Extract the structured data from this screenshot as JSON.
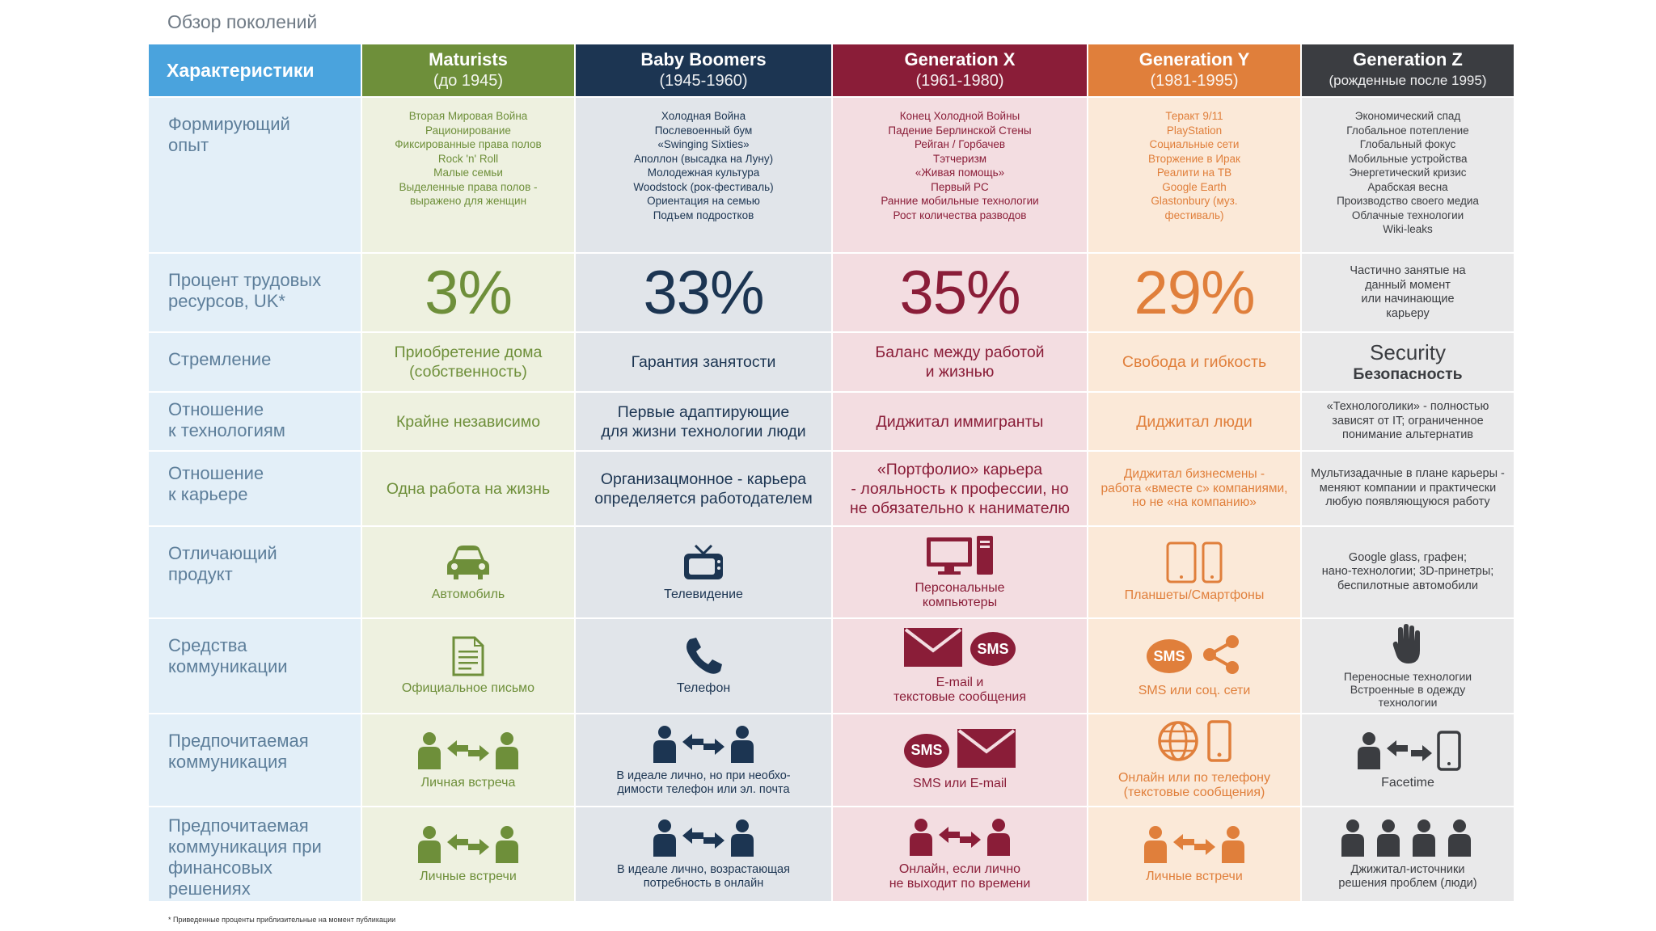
{
  "title": "Обзор поколений",
  "footnote": "* Приведенные проценты приблизительные на момент публикации",
  "header": {
    "label": "Характеристики",
    "generations": [
      {
        "name": "Maturists",
        "period": "(до 1945)"
      },
      {
        "name": "Baby Boomers",
        "period": "(1945-1960)"
      },
      {
        "name": "Generation X",
        "period": "(1961-1980)"
      },
      {
        "name": "Generation Y",
        "period": "(1981-1995)"
      },
      {
        "name": "Generation Z",
        "period": "(рожденные после 1995)"
      }
    ]
  },
  "rows": {
    "experience": {
      "label": "Формирующий\nопыт",
      "values": [
        "Вторая Мировая Война\nРационирование\nФиксированные права полов\nRock 'n' Roll\nМалые семьи\nВыделенные права полов -\nвыражено для женщин",
        "Холодная Война\nПослевоенный бум\n«Swinging Sixties»\nАполлон (высадка на Луну)\nМолодежная культура\nWoodstock (рок-фестиваль)\nОриентация на семью\nПодъем подростков",
        "Конец Холодной Войны\nПадение Берлинской Стены\nРейган / Горбачев\nТэтчеризм\n«Живая помощь»\nПервый PC\nРанние мобильные технологии\nРост количества разводов",
        "Теракт 9/11\nPlayStation\nСоциальные сети\nВторжение в Ирак\nРеалити на ТВ\nGoogle Earth\nGlastonbury (муз.\nфестиваль)",
        "Экономический спад\nГлобальное потепление\nГлобальный фокус\nМобильные устройства\nЭнергетический кризис\nАрабская весна\nПроизводство своего медиа\nОблачные технологии\nWiki-leaks"
      ]
    },
    "workforce": {
      "label": "Процент трудовых\nресурсов, UK*",
      "values": [
        "3%",
        "33%",
        "35%",
        "29%",
        "Частично занятые на\nданный момент\nили начинающие\nкарьеру"
      ]
    },
    "aspiration": {
      "label": "Стремление",
      "values": [
        "Приобретение дома\n(собственность)",
        "Гарантия занятости",
        "Баланс между работой\nи жизнью",
        "Свобода и гибкость"
      ],
      "genz_en": "Security",
      "genz_ru": "Безопасность"
    },
    "technology": {
      "label": "Отношение\nк технологиям",
      "values": [
        "Крайне независимо",
        "Первые адаптирующие\nдля жизни технологии люди",
        "Диджитал иммигранты",
        "Диджитал люди",
        "«Технологолики» - полностью\nзависят от IT; ограниченное\nпонимание альтернатив"
      ]
    },
    "career": {
      "label": "Отношение\nк карьере",
      "values": [
        "Одна работа на жизнь",
        "Организацмонное - карьера\nопределяется работодателем",
        "«Портфолио» карьера\n- лояльность к профессии, но\nне обязательно к нанимателю",
        "Диджитал бизнесмены -\nработа «вместе с» компаниями,\nно не «на компанию»",
        "Мультизадачные в плане карьеры -\nменяют компании и практически\nлюбую появляющуюся работу"
      ]
    },
    "product": {
      "label": "Отличающий\nпродукт",
      "values": [
        "Автомобиль",
        "Телевидение",
        "Персональные\nкомпьютеры",
        "Планшеты/Смартфоны",
        "Google glass, графен;\nнано-технологии; 3D-принетры;\nбеспилотные автомобили"
      ]
    },
    "comm_means": {
      "label": "Средства\nкоммуникации",
      "values": [
        "Официальное письмо",
        "Телефон",
        "E-mail и\nтекстовые сообщения",
        "SMS или соц. сети",
        "Переносные технологии\nВстроенные в одежду\nтехнологии"
      ]
    },
    "comm_pref": {
      "label": "Предпочитаемая\nкоммуникация",
      "values": [
        "Личная встреча",
        "В идеале лично, но при необхо-\nдимости телефон или эл. почта",
        "SMS или E-mail",
        "Онлайн или по телефону\n(текстовые сообщения)",
        "Facetime"
      ]
    },
    "comm_finance": {
      "label": "Предпочитаемая\nкоммуникация при\nфинансовых\nрешениях",
      "values": [
        "Личные встречи",
        "В идеале лично, возрастающая\nпотребность в онлайн",
        "Онлайн, если лично\nне выходит по времени",
        "Личные встречи",
        "Джижитал-источники\nрешения проблем (люди)"
      ]
    }
  },
  "icons": {
    "product": [
      "car-icon",
      "tv-icon",
      "desktop-computer-icon",
      "tablet-smartphone-icon"
    ],
    "comm_means": [
      "letter-icon",
      "phone-icon",
      "envelope-icon",
      "sms-bubble-icon",
      "share-icon",
      "hand-icon"
    ],
    "comm_pref": [
      "people-exchange-icon",
      "globe-icon",
      "mobile-phone-icon",
      "facetime-icon"
    ],
    "comm_finance": [
      "people-exchange-icon",
      "people-group-icon"
    ]
  },
  "sms_text": "SMS",
  "colors": {
    "header_label": "#4aa3dd",
    "maturists": "#6e8f3a",
    "baby_boomers": "#1c3552",
    "generation_x": "#8a1d38",
    "generation_y": "#e07f3b",
    "generation_z": "#3b3d41",
    "label_column": "#e3eff8"
  }
}
